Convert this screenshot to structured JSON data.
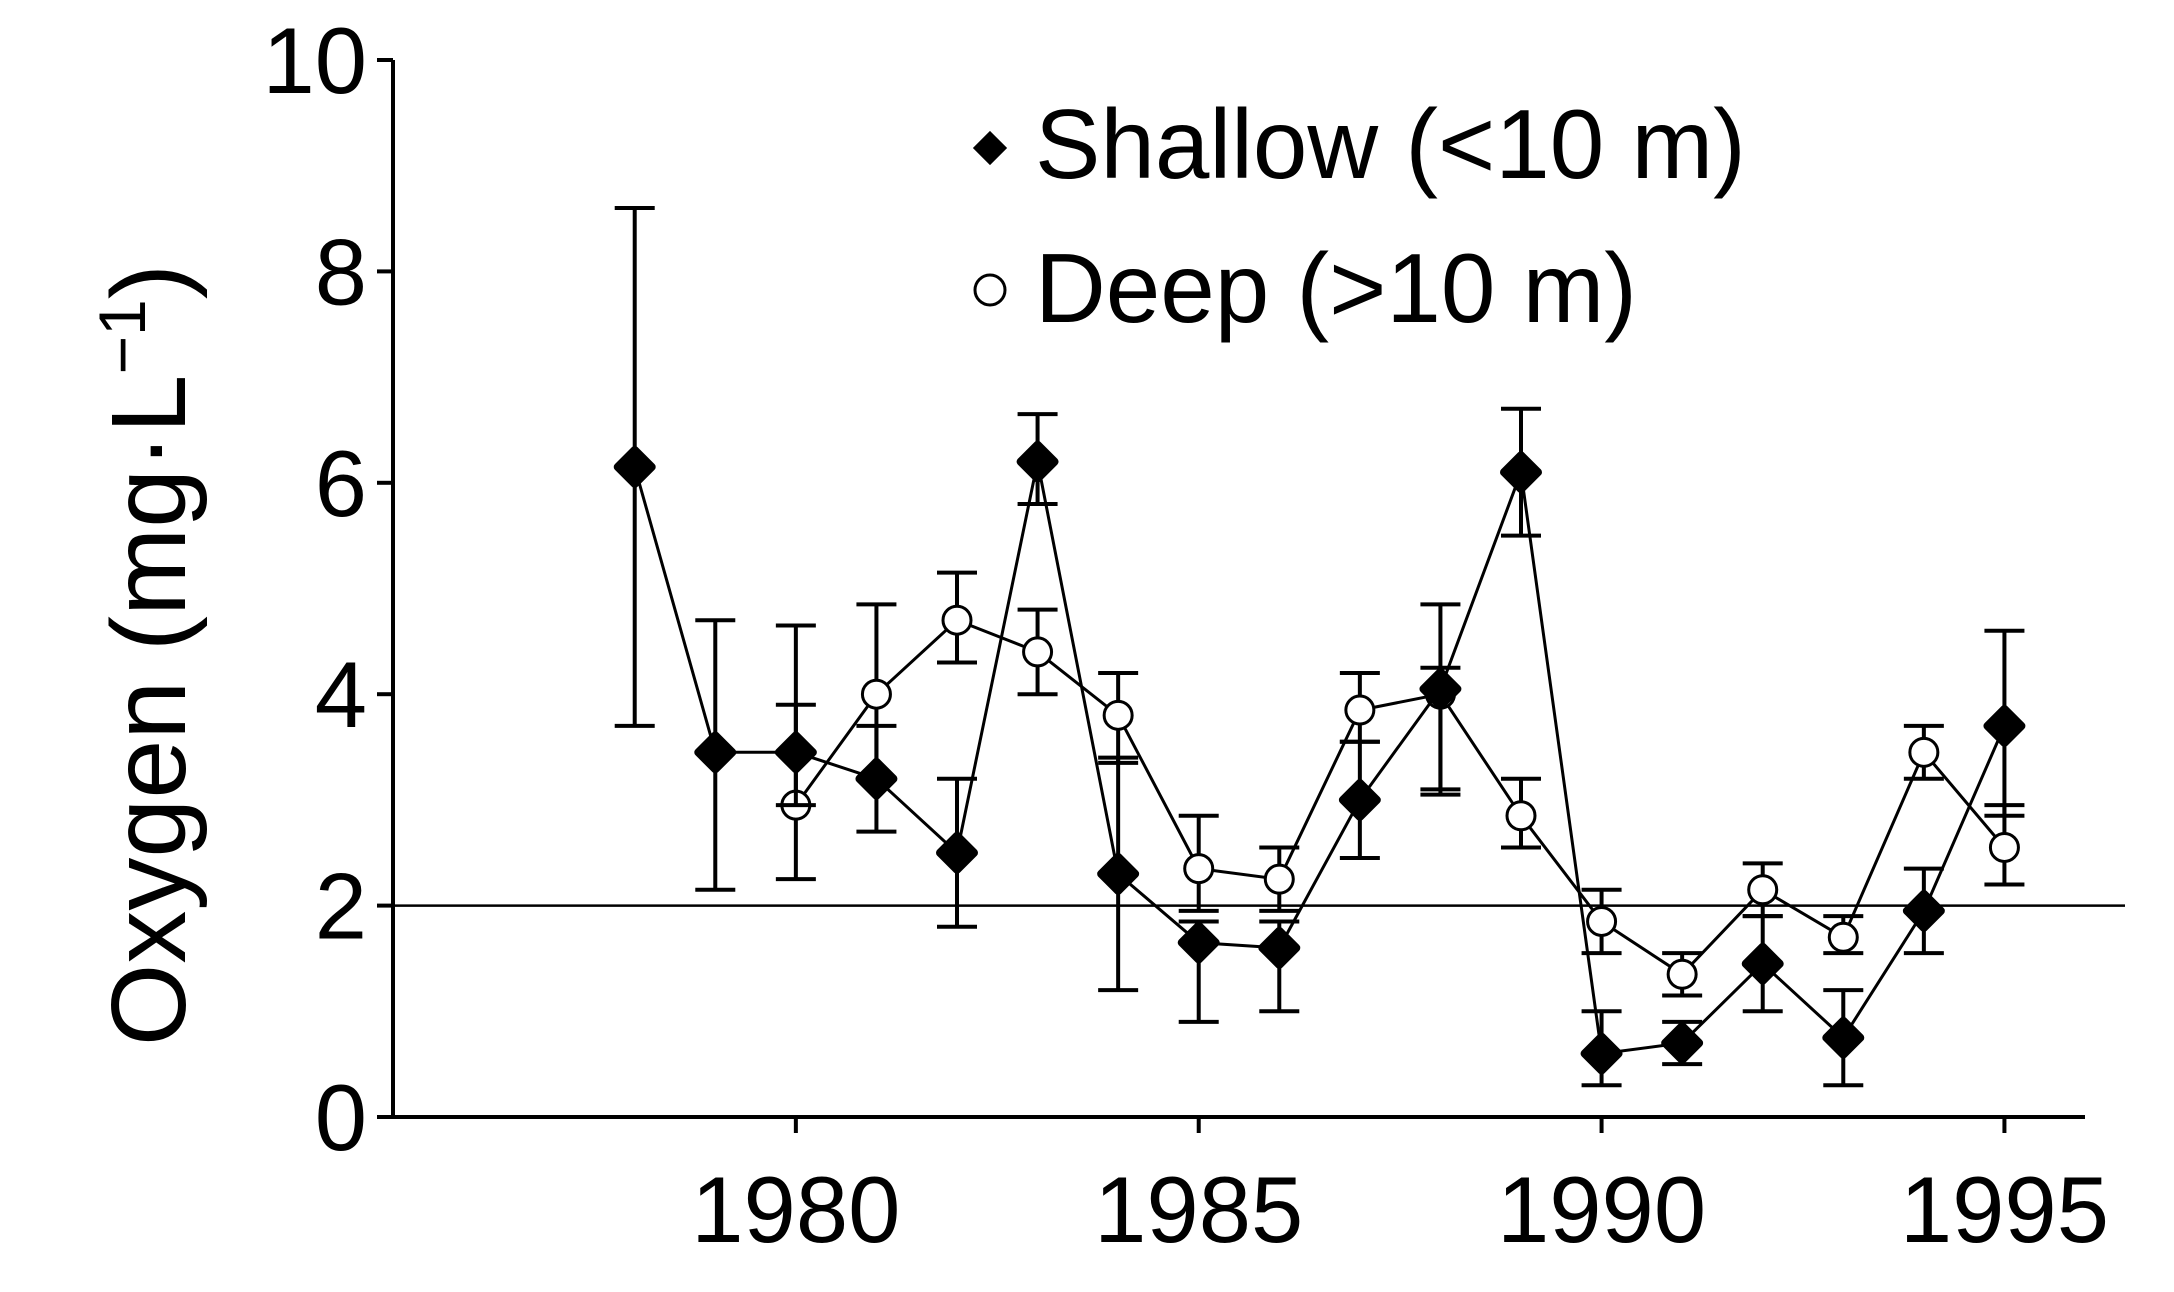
{
  "chart_data": {
    "type": "line",
    "title": "",
    "xlabel": "",
    "ylabel": "Oxygen  (mg·L",
    "ylabel_superscript": "−1",
    "ylabel_close": ")",
    "xlim": [
      1975,
      1996
    ],
    "ylim": [
      0,
      10
    ],
    "xticks": [
      1980,
      1985,
      1990,
      1995
    ],
    "xtick_labels": [
      "1980",
      "1985",
      "1990",
      "1995"
    ],
    "yticks": [
      0,
      2,
      4,
      6,
      8,
      10
    ],
    "ytick_labels": [
      "0",
      "2",
      "4",
      "6",
      "8",
      "10"
    ],
    "reference_line": {
      "y": 2
    },
    "legend_position": "top-right",
    "series": [
      {
        "name": "Shallow (<10 m)",
        "marker": "filled-diamond",
        "color": "#000000",
        "points": [
          {
            "x": 1978,
            "y": 6.15,
            "lo": 3.7,
            "hi": 8.6
          },
          {
            "x": 1979,
            "y": 3.45,
            "lo": 2.15,
            "hi": 4.7
          },
          {
            "x": 1980,
            "y": 3.45,
            "lo": 2.95,
            "hi": 3.9
          },
          {
            "x": 1981,
            "y": 3.2,
            "lo": 2.7,
            "hi": 3.7
          },
          {
            "x": 1982,
            "y": 2.5,
            "lo": 1.8,
            "hi": 3.2
          },
          {
            "x": 1983,
            "y": 6.2,
            "lo": 5.8,
            "hi": 6.65
          },
          {
            "x": 1984,
            "y": 2.3,
            "lo": 1.2,
            "hi": 3.4
          },
          {
            "x": 1985,
            "y": 1.65,
            "lo": 0.9,
            "hi": 1.85
          },
          {
            "x": 1986,
            "y": 1.6,
            "lo": 1.0,
            "hi": 1.85
          },
          {
            "x": 1987,
            "y": 3.0,
            "lo": 2.45,
            "hi": 3.55
          },
          {
            "x": 1988,
            "y": 4.05,
            "lo": 3.05,
            "hi": 4.25
          },
          {
            "x": 1989,
            "y": 6.1,
            "lo": 5.5,
            "hi": 6.7
          },
          {
            "x": 1990,
            "y": 0.6,
            "lo": 0.3,
            "hi": 1.0
          },
          {
            "x": 1991,
            "y": 0.7,
            "lo": 0.5,
            "hi": 0.9
          },
          {
            "x": 1992,
            "y": 1.45,
            "lo": 1.0,
            "hi": 1.9
          },
          {
            "x": 1993,
            "y": 0.75,
            "lo": 0.3,
            "hi": 1.2
          },
          {
            "x": 1994,
            "y": 1.95,
            "lo": 1.55,
            "hi": 2.35
          },
          {
            "x": 1995,
            "y": 3.7,
            "lo": 2.85,
            "hi": 4.6
          }
        ]
      },
      {
        "name": "Deep (>10 m)",
        "marker": "open-circle",
        "color": "#000000",
        "points": [
          {
            "x": 1980,
            "y": 2.95,
            "lo": 2.25,
            "hi": 4.65
          },
          {
            "x": 1981,
            "y": 4.0,
            "lo": 3.2,
            "hi": 4.85
          },
          {
            "x": 1982,
            "y": 4.7,
            "lo": 4.3,
            "hi": 5.15
          },
          {
            "x": 1983,
            "y": 4.4,
            "lo": 4.0,
            "hi": 4.8
          },
          {
            "x": 1984,
            "y": 3.8,
            "lo": 3.35,
            "hi": 4.2
          },
          {
            "x": 1985,
            "y": 2.35,
            "lo": 1.95,
            "hi": 2.85
          },
          {
            "x": 1986,
            "y": 2.25,
            "lo": 1.95,
            "hi": 2.55
          },
          {
            "x": 1987,
            "y": 3.85,
            "lo": 3.55,
            "hi": 4.2
          },
          {
            "x": 1988,
            "y": 4.0,
            "lo": 3.1,
            "hi": 4.85
          },
          {
            "x": 1989,
            "y": 2.85,
            "lo": 2.55,
            "hi": 3.2
          },
          {
            "x": 1990,
            "y": 1.85,
            "lo": 1.55,
            "hi": 2.15
          },
          {
            "x": 1991,
            "y": 1.35,
            "lo": 1.15,
            "hi": 1.55
          },
          {
            "x": 1992,
            "y": 2.15,
            "lo": 1.9,
            "hi": 2.4
          },
          {
            "x": 1993,
            "y": 1.7,
            "lo": 1.55,
            "hi": 1.9
          },
          {
            "x": 1994,
            "y": 3.45,
            "lo": 3.2,
            "hi": 3.7
          },
          {
            "x": 1995,
            "y": 2.55,
            "lo": 2.2,
            "hi": 2.95
          }
        ]
      }
    ]
  }
}
